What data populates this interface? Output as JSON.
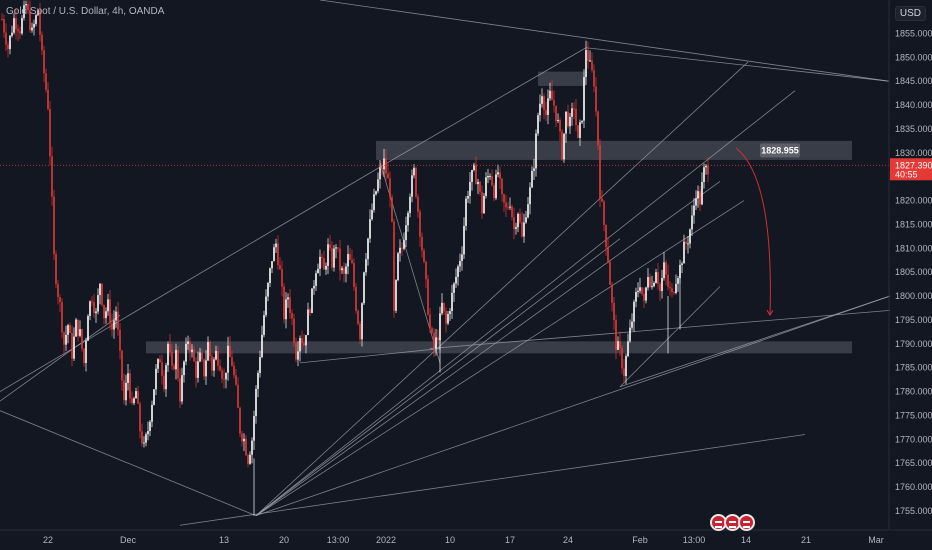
{
  "header": {
    "symbol": "Gold Spot / U.S. Dollar, 4h, OANDA",
    "currency": "USD"
  },
  "chart_data": {
    "type": "candlestick",
    "ylim": [
      1751,
      1862
    ],
    "y_ticks": [
      1755,
      1760,
      1765,
      1770,
      1775,
      1780,
      1785,
      1790,
      1795,
      1800,
      1805,
      1810,
      1815,
      1820,
      1825,
      1830,
      1835,
      1840,
      1845,
      1850,
      1855,
      1860
    ],
    "y_tick_labels": [
      "1755.000",
      "1760.000",
      "1765.000",
      "1770.000",
      "1775.000",
      "1780.000",
      "1785.000",
      "1790.000",
      "1795.000",
      "1800.000",
      "1805.000",
      "1810.000",
      "1815.000",
      "1820.000",
      "1825.000",
      "1830.000",
      "1835.000",
      "1840.000",
      "1845.000",
      "1850.000",
      "1855.000",
      "1860.000"
    ],
    "x_ticks": [
      {
        "label": "22",
        "t": 48
      },
      {
        "label": "Dec",
        "t": 128
      },
      {
        "label": "13",
        "t": 224
      },
      {
        "label": "20",
        "t": 284
      },
      {
        "label": "13:00",
        "t": 338
      },
      {
        "label": "2022",
        "t": 386
      },
      {
        "label": "10",
        "t": 450
      },
      {
        "label": "17",
        "t": 510
      },
      {
        "label": "24",
        "t": 568
      },
      {
        "label": "Feb",
        "t": 640
      },
      {
        "label": "13:00",
        "t": 694
      },
      {
        "label": "14",
        "t": 746
      },
      {
        "label": "21",
        "t": 806
      },
      {
        "label": "Mar",
        "t": 876
      }
    ],
    "price_path": [
      [
        2,
        1858
      ],
      [
        8,
        1852
      ],
      [
        14,
        1858
      ],
      [
        20,
        1856
      ],
      [
        26,
        1861
      ],
      [
        32,
        1855
      ],
      [
        38,
        1860
      ],
      [
        42,
        1850
      ],
      [
        45,
        1845
      ],
      [
        48,
        1840
      ],
      [
        51,
        1825
      ],
      [
        54,
        1808
      ],
      [
        57,
        1802
      ],
      [
        60,
        1798
      ],
      [
        64,
        1790
      ],
      [
        68,
        1794
      ],
      [
        72,
        1788
      ],
      [
        76,
        1794
      ],
      [
        80,
        1792
      ],
      [
        84,
        1786
      ],
      [
        88,
        1797
      ],
      [
        92,
        1800
      ],
      [
        96,
        1796
      ],
      [
        100,
        1803
      ],
      [
        104,
        1796
      ],
      [
        108,
        1798
      ],
      [
        112,
        1793
      ],
      [
        116,
        1797
      ],
      [
        120,
        1787
      ],
      [
        124,
        1778
      ],
      [
        128,
        1784
      ],
      [
        132,
        1776
      ],
      [
        136,
        1780
      ],
      [
        140,
        1772
      ],
      [
        144,
        1768
      ],
      [
        148,
        1772
      ],
      [
        152,
        1778
      ],
      [
        156,
        1784
      ],
      [
        160,
        1787
      ],
      [
        164,
        1782
      ],
      [
        168,
        1790
      ],
      [
        172,
        1784
      ],
      [
        176,
        1788
      ],
      [
        180,
        1779
      ],
      [
        184,
        1786
      ],
      [
        188,
        1791
      ],
      [
        192,
        1788
      ],
      [
        196,
        1784
      ],
      [
        200,
        1787
      ],
      [
        204,
        1784
      ],
      [
        208,
        1790
      ],
      [
        212,
        1785
      ],
      [
        216,
        1788
      ],
      [
        220,
        1786
      ],
      [
        224,
        1782
      ],
      [
        228,
        1788
      ],
      [
        232,
        1786
      ],
      [
        236,
        1780
      ],
      [
        240,
        1772
      ],
      [
        244,
        1770
      ],
      [
        248,
        1766
      ],
      [
        252,
        1770
      ],
      [
        256,
        1780
      ],
      [
        260,
        1788
      ],
      [
        264,
        1796
      ],
      [
        268,
        1802
      ],
      [
        272,
        1808
      ],
      [
        276,
        1811
      ],
      [
        280,
        1805
      ],
      [
        284,
        1796
      ],
      [
        288,
        1800
      ],
      [
        292,
        1795
      ],
      [
        296,
        1788
      ],
      [
        300,
        1792
      ],
      [
        304,
        1790
      ],
      [
        308,
        1796
      ],
      [
        312,
        1800
      ],
      [
        316,
        1806
      ],
      [
        320,
        1808
      ],
      [
        324,
        1805
      ],
      [
        328,
        1810
      ],
      [
        332,
        1807
      ],
      [
        336,
        1811
      ],
      [
        340,
        1806
      ],
      [
        344,
        1804
      ],
      [
        348,
        1808
      ],
      [
        352,
        1806
      ],
      [
        356,
        1798
      ],
      [
        360,
        1792
      ],
      [
        364,
        1806
      ],
      [
        368,
        1812
      ],
      [
        372,
        1818
      ],
      [
        376,
        1822
      ],
      [
        380,
        1826
      ],
      [
        384,
        1828
      ],
      [
        388,
        1824
      ],
      [
        390,
        1822
      ],
      [
        392,
        1814
      ],
      [
        394,
        1796
      ],
      [
        398,
        1808
      ],
      [
        402,
        1810
      ],
      [
        406,
        1816
      ],
      [
        410,
        1822
      ],
      [
        414,
        1826
      ],
      [
        418,
        1818
      ],
      [
        422,
        1810
      ],
      [
        426,
        1802
      ],
      [
        430,
        1793
      ],
      [
        434,
        1789
      ],
      [
        438,
        1792
      ],
      [
        442,
        1798
      ],
      [
        446,
        1794
      ],
      [
        450,
        1798
      ],
      [
        454,
        1802
      ],
      [
        458,
        1806
      ],
      [
        462,
        1810
      ],
      [
        466,
        1820
      ],
      [
        470,
        1824
      ],
      [
        474,
        1826
      ],
      [
        478,
        1824
      ],
      [
        482,
        1818
      ],
      [
        486,
        1824
      ],
      [
        490,
        1826
      ],
      [
        494,
        1822
      ],
      [
        498,
        1826
      ],
      [
        502,
        1820
      ],
      [
        506,
        1818
      ],
      [
        510,
        1820
      ],
      [
        514,
        1814
      ],
      [
        518,
        1818
      ],
      [
        522,
        1812
      ],
      [
        526,
        1818
      ],
      [
        530,
        1822
      ],
      [
        534,
        1828
      ],
      [
        538,
        1838
      ],
      [
        542,
        1843
      ],
      [
        546,
        1838
      ],
      [
        550,
        1842
      ],
      [
        554,
        1840
      ],
      [
        558,
        1836
      ],
      [
        562,
        1830
      ],
      [
        566,
        1838
      ],
      [
        570,
        1836
      ],
      [
        574,
        1840
      ],
      [
        578,
        1832
      ],
      [
        582,
        1838
      ],
      [
        586,
        1852
      ],
      [
        590,
        1848
      ],
      [
        594,
        1845
      ],
      [
        598,
        1832
      ],
      [
        600,
        1822
      ],
      [
        604,
        1815
      ],
      [
        608,
        1808
      ],
      [
        612,
        1798
      ],
      [
        616,
        1790
      ],
      [
        620,
        1788
      ],
      [
        624,
        1784
      ],
      [
        628,
        1790
      ],
      [
        632,
        1795
      ],
      [
        636,
        1800
      ],
      [
        640,
        1803
      ],
      [
        644,
        1798
      ],
      [
        648,
        1805
      ],
      [
        652,
        1802
      ],
      [
        656,
        1806
      ],
      [
        660,
        1801
      ],
      [
        664,
        1806
      ],
      [
        668,
        1802
      ],
      [
        672,
        1800
      ],
      [
        676,
        1804
      ],
      [
        680,
        1806
      ],
      [
        684,
        1810
      ],
      [
        688,
        1812
      ],
      [
        692,
        1816
      ],
      [
        696,
        1822
      ],
      [
        700,
        1820
      ],
      [
        704,
        1826
      ],
      [
        708,
        1827
      ]
    ],
    "zones": [
      {
        "t1": 376,
        "t2": 852,
        "y1": 1828.5,
        "y2": 1832.5
      },
      {
        "t1": 146,
        "t2": 852,
        "y1": 1788,
        "y2": 1790.5
      },
      {
        "t1": 538,
        "t2": 586,
        "y1": 1844,
        "y2": 1847
      }
    ],
    "trendlines": [
      [
        0,
        1780,
        388,
        1828
      ],
      [
        388,
        1828,
        586,
        1852
      ],
      [
        320,
        1862,
        889,
        1845
      ],
      [
        586,
        1852,
        889,
        1845
      ],
      [
        0,
        1778,
        120,
        1796
      ],
      [
        0,
        1776,
        256,
        1754
      ],
      [
        180,
        1752,
        805,
        1771
      ],
      [
        256,
        1754,
        620,
        1812
      ],
      [
        256,
        1754,
        748,
        1849
      ],
      [
        256,
        1754,
        795,
        1843
      ],
      [
        256,
        1754,
        720,
        1824
      ],
      [
        256,
        1754,
        744,
        1820
      ],
      [
        256,
        1754,
        890,
        1800
      ],
      [
        620,
        1781,
        890,
        1800
      ],
      [
        620,
        1781,
        720,
        1802
      ],
      [
        300,
        1786,
        440,
        1789
      ],
      [
        430,
        1789,
        890,
        1797
      ],
      [
        380,
        1828,
        440,
        1786
      ]
    ],
    "price_level_line": 1827.39,
    "arrow": {
      "from": [
        736,
        1831
      ],
      "to": [
        770,
        1796
      ]
    },
    "labels": {
      "level_label": "1828.955",
      "current_price": "1827.390",
      "countdown": "40:55"
    }
  }
}
